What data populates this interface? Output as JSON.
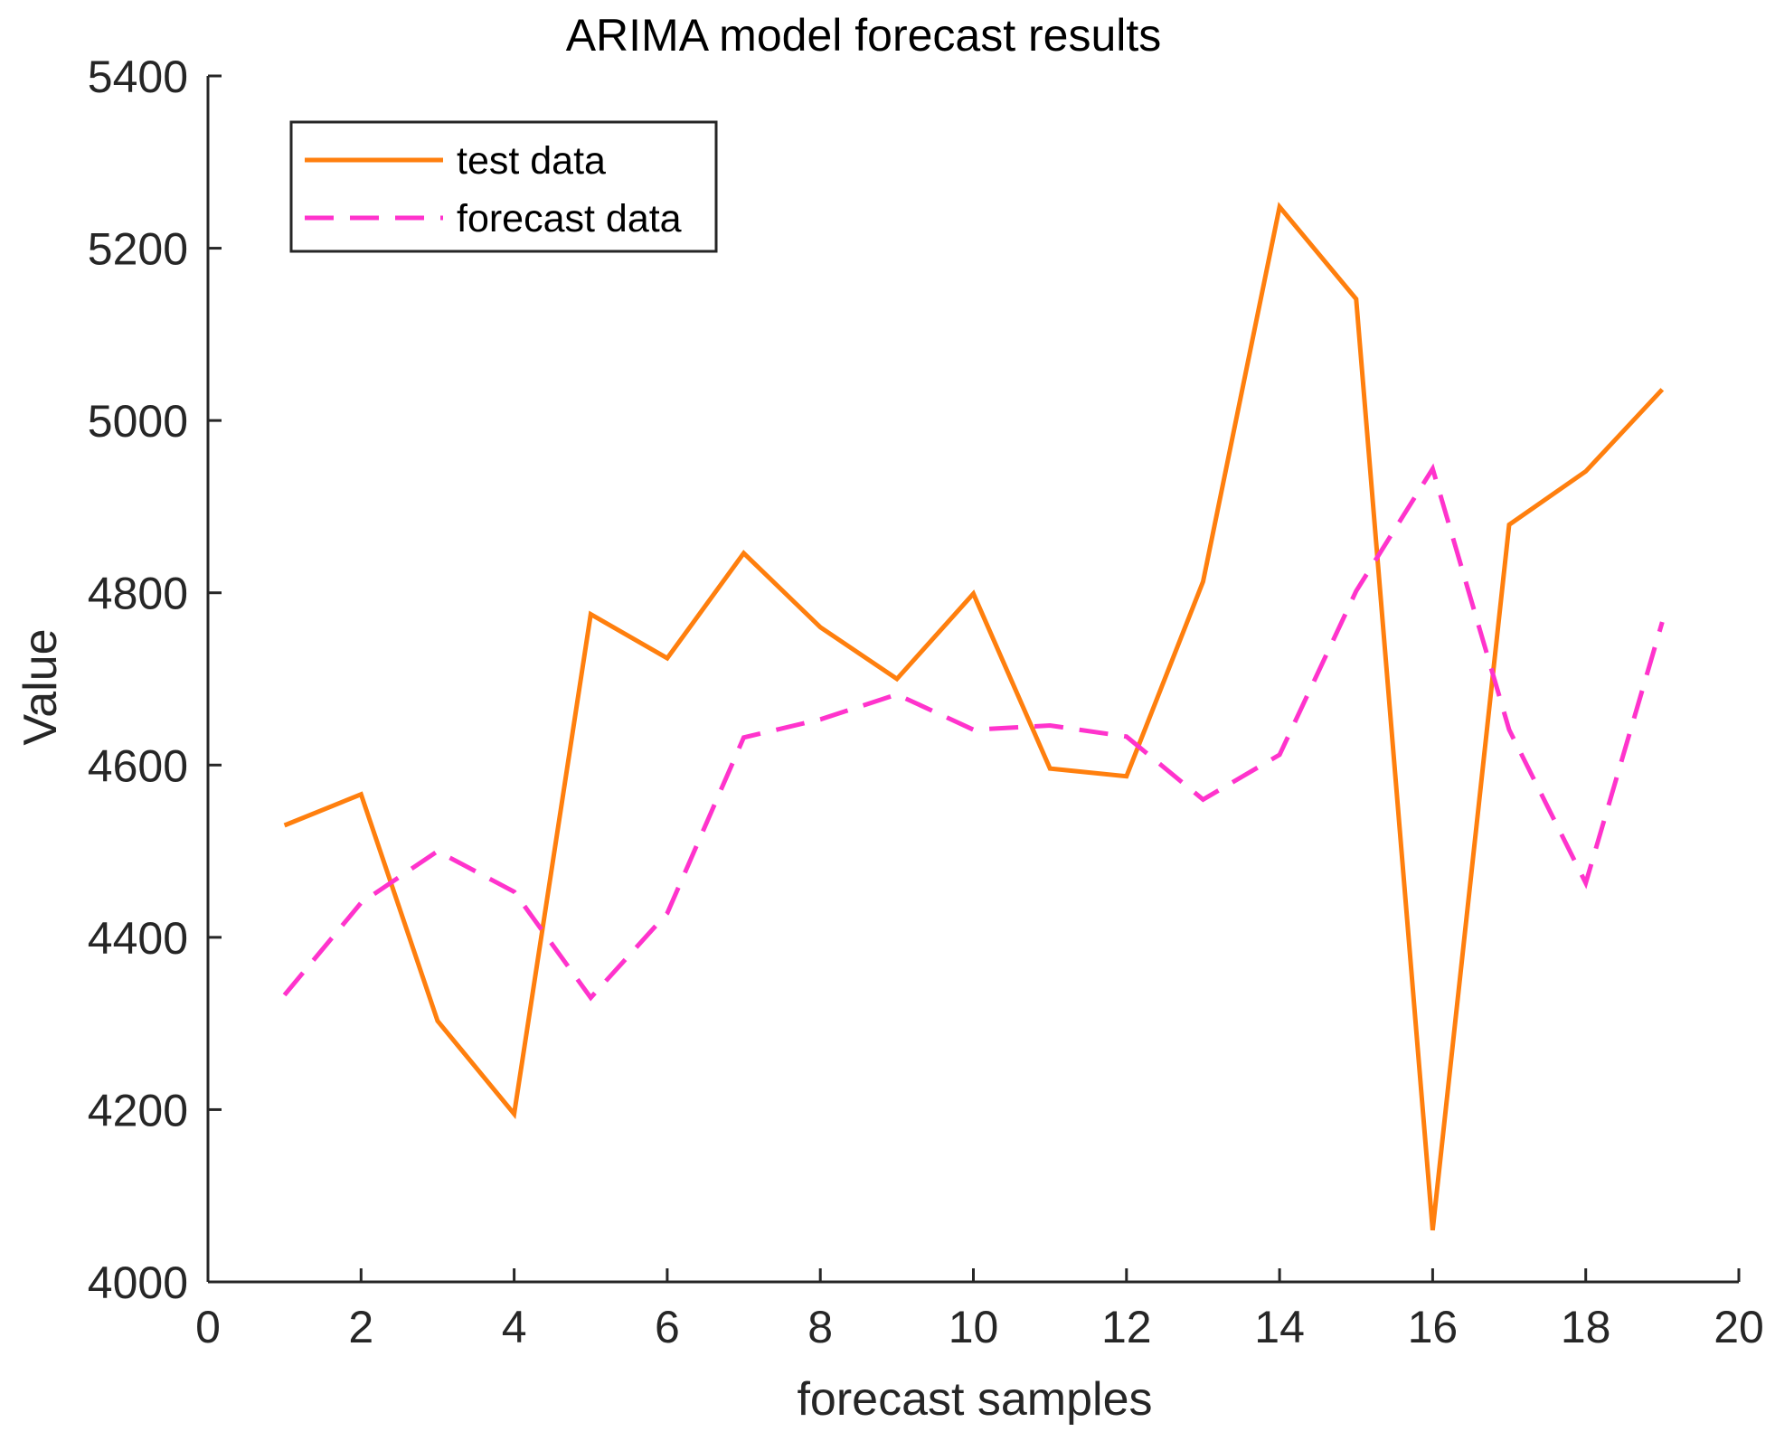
{
  "chart_data": {
    "type": "line",
    "title": "ARIMA model forecast results",
    "xlabel": "forecast samples",
    "ylabel": "Value",
    "xlim": [
      0,
      20
    ],
    "ylim": [
      4000,
      5400
    ],
    "xticks": [
      0,
      2,
      4,
      6,
      8,
      10,
      12,
      14,
      16,
      18,
      20
    ],
    "yticks": [
      4000,
      4200,
      4400,
      4600,
      4800,
      5000,
      5200,
      5400
    ],
    "grid": false,
    "legend_position": "top-left",
    "x": [
      1,
      2,
      3,
      4,
      5,
      6,
      7,
      8,
      9,
      10,
      11,
      12,
      13,
      14,
      15,
      16,
      17,
      18,
      19
    ],
    "series": [
      {
        "name": "test data",
        "color": "#ff7f0e",
        "style": "solid",
        "values": [
          4530,
          4566,
          4303,
          4195,
          4775,
          4724,
          4846,
          4760,
          4700,
          4799,
          4596,
          4587,
          4813,
          5248,
          5141,
          4060,
          4879,
          4941,
          5036
        ]
      },
      {
        "name": "forecast data",
        "color": "#ff33cc",
        "style": "dashed",
        "values": [
          4333,
          4440,
          4500,
          4453,
          4330,
          4428,
          4632,
          4653,
          4682,
          4641,
          4646,
          4633,
          4560,
          4612,
          4802,
          4944,
          4641,
          4463,
          4766
        ]
      }
    ]
  }
}
